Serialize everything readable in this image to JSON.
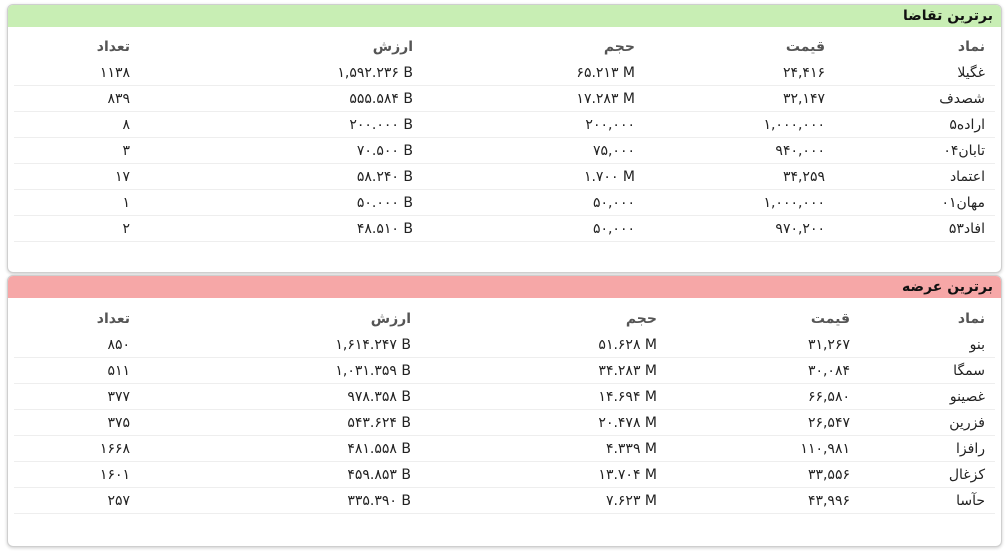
{
  "panels": [
    {
      "title": "برترین تقاضا",
      "columns": [
        "نماد",
        "قیمت",
        "حجم",
        "ارزش",
        "تعداد"
      ],
      "rows": [
        [
          "غگیلا",
          "۲۴,۴۱۶",
          "۶۵.۲۱۳ M",
          "۱,۵۹۲.۲۳۶ B",
          "۱۱۳۸"
        ],
        [
          "شصدف",
          "۳۲,۱۴۷",
          "۱۷.۲۸۳ M",
          "۵۵۵.۵۸۴ B",
          "۸۳۹"
        ],
        [
          "اراده۵",
          "۱,۰۰۰,۰۰۰",
          "۲۰۰,۰۰۰",
          "۲۰۰.۰۰۰ B",
          "۸"
        ],
        [
          "تابان۰۴",
          "۹۴۰,۰۰۰",
          "۷۵,۰۰۰",
          "۷۰.۵۰۰ B",
          "۳"
        ],
        [
          "اعتماد",
          "۳۴,۲۵۹",
          "۱.۷۰۰ M",
          "۵۸.۲۴۰ B",
          "۱۷"
        ],
        [
          "مهان۰۱",
          "۱,۰۰۰,۰۰۰",
          "۵۰,۰۰۰",
          "۵۰.۰۰۰ B",
          "۱"
        ],
        [
          "افاد۵۳",
          "۹۷۰,۲۰۰",
          "۵۰,۰۰۰",
          "۴۸.۵۱۰ B",
          "۲"
        ]
      ]
    },
    {
      "title": "برترین عرضه",
      "columns": [
        "نماد",
        "قیمت",
        "حجم",
        "ارزش",
        "تعداد"
      ],
      "rows": [
        [
          "بنو",
          "۳۱,۲۶۷",
          "۵۱.۶۲۸ M",
          "۱,۶۱۴.۲۴۷ B",
          "۸۵۰"
        ],
        [
          "سمگا",
          "۳۰,۰۸۴",
          "۳۴.۲۸۳ M",
          "۱,۰۳۱.۳۵۹ B",
          "۵۱۱"
        ],
        [
          "غصینو",
          "۶۶,۵۸۰",
          "۱۴.۶۹۴ M",
          "۹۷۸.۳۵۸ B",
          "۳۷۷"
        ],
        [
          "فزرین",
          "۲۶,۵۴۷",
          "۲۰.۴۷۸ M",
          "۵۴۳.۶۲۴ B",
          "۳۷۵"
        ],
        [
          "رافزا",
          "۱۱۰,۹۸۱",
          "۴.۳۳۹ M",
          "۴۸۱.۵۵۸ B",
          "۱۶۶۸"
        ],
        [
          "کزغال",
          "۳۳,۵۵۶",
          "۱۳.۷۰۴ M",
          "۴۵۹.۸۵۳ B",
          "۱۶۰۱"
        ],
        [
          "حآسا",
          "۴۳,۹۹۶",
          "۷.۶۲۳ M",
          "۳۳۵.۳۹۰ B",
          "۲۵۷"
        ]
      ]
    }
  ]
}
